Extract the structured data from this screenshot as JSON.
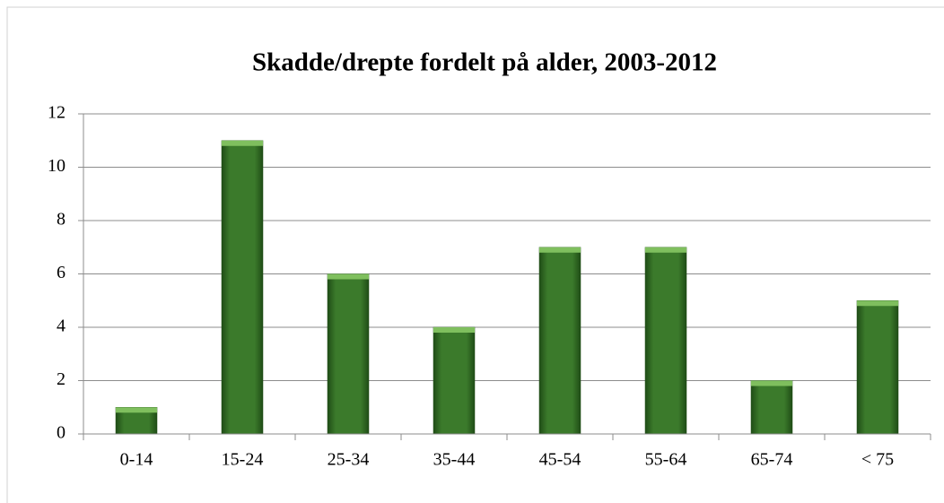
{
  "chart_data": {
    "type": "bar",
    "title": "Skadde/drepte fordelt på alder, 2003-2012",
    "categories": [
      "0-14",
      "15-24",
      "25-34",
      "35-44",
      "45-54",
      "55-64",
      "65-74",
      "< 75"
    ],
    "values": [
      1,
      11,
      6,
      4,
      7,
      7,
      2,
      5
    ],
    "color": "#3b7a2b",
    "ylim": [
      0,
      12
    ],
    "yticks": [
      0,
      2,
      4,
      6,
      8,
      10,
      12
    ],
    "grid": true
  }
}
